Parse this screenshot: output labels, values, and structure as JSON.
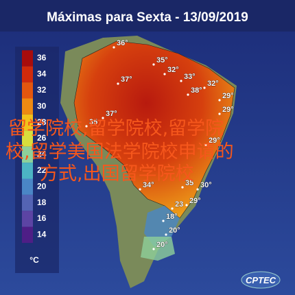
{
  "header": {
    "title": "Máximas para Sexta - 13/09/2019"
  },
  "legend": {
    "ticks": [
      36,
      34,
      32,
      30,
      28,
      26,
      24,
      22,
      20,
      18,
      16,
      14
    ],
    "colors": [
      "#a80c0c",
      "#d02a0c",
      "#e4560e",
      "#ee8a12",
      "#f2c21a",
      "#d8de3c",
      "#8ed09a",
      "#4cb4c4",
      "#4a86c6",
      "#5464b4",
      "#5c44a4",
      "#4e1e86"
    ],
    "unit": "°C"
  },
  "labels": [
    "36°",
    "35°",
    "32°",
    "33°",
    "37°",
    "32°",
    "38°",
    "29°",
    "29°",
    "37°",
    "35",
    "29°",
    "34°",
    "35",
    "30°",
    "29°",
    "23",
    "18°",
    "20°",
    "20°"
  ],
  "overlay": [
    "留学院校,留学院校,留学院",
    "校,留学美国法学院校申请的",
    "方式,出国留学院校"
  ],
  "logo": "CPTEC"
}
